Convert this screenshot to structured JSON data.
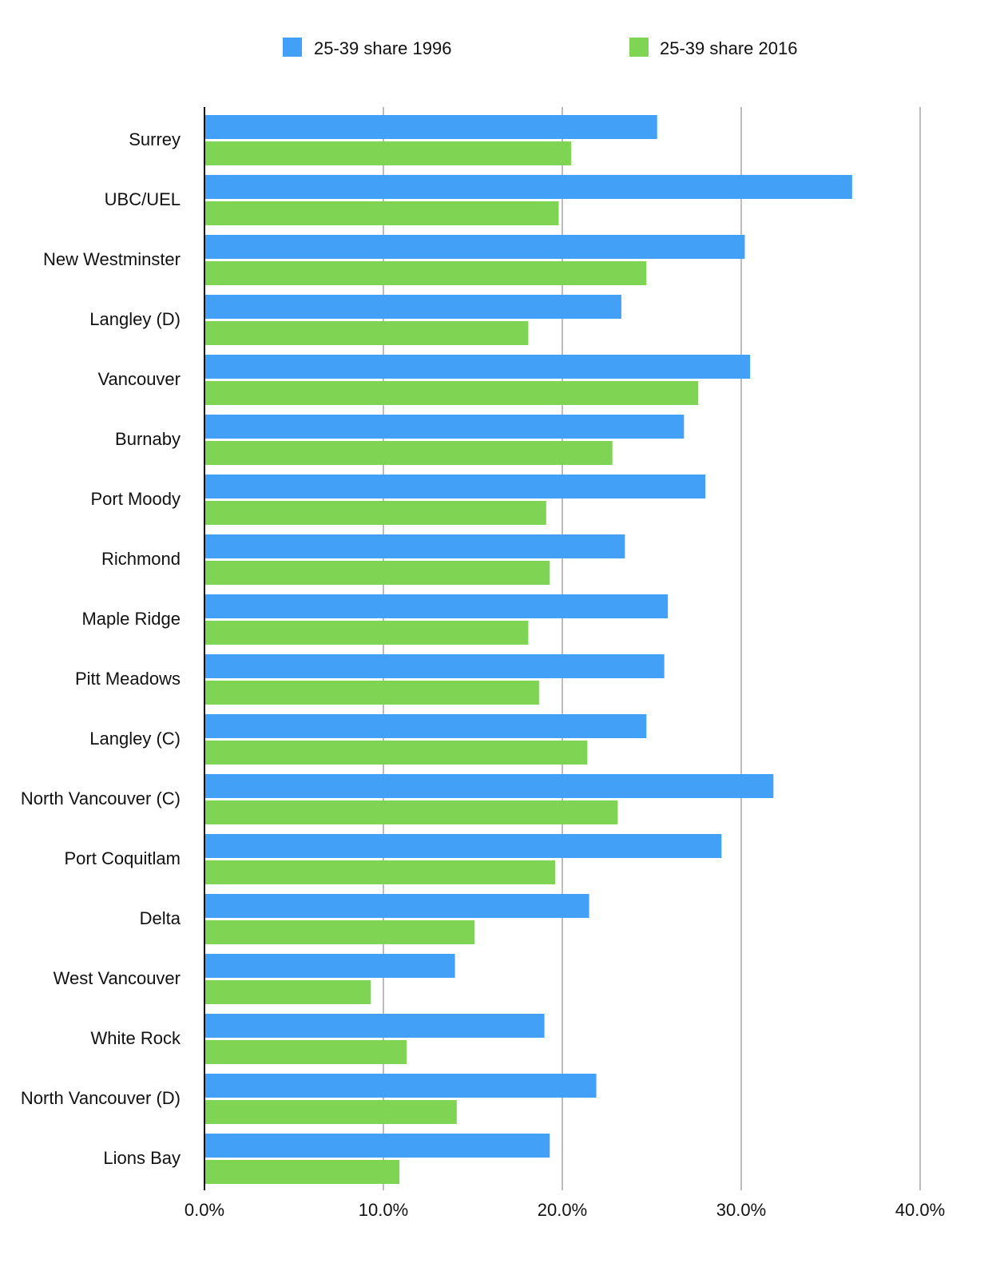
{
  "chart_data": {
    "type": "bar",
    "orientation": "horizontal",
    "categories": [
      "Surrey",
      "UBC/UEL",
      "New Westminster",
      "Langley (D)",
      "Vancouver",
      "Burnaby",
      "Port Moody",
      "Richmond",
      "Maple Ridge",
      "Pitt Meadows",
      "Langley (C)",
      "North Vancouver (C)",
      "Port Coquitlam",
      "Delta",
      "West Vancouver",
      "White Rock",
      "North Vancouver (D)",
      "Lions Bay"
    ],
    "series": [
      {
        "name": "25-39 share 1996",
        "color": "#42a1f6",
        "values": [
          25.3,
          36.2,
          30.2,
          23.3,
          30.5,
          26.8,
          28.0,
          23.5,
          25.9,
          25.7,
          24.7,
          31.8,
          28.9,
          21.5,
          14.0,
          19.0,
          21.9,
          19.3
        ]
      },
      {
        "name": "25-39 share 2016",
        "color": "#7fd454",
        "values": [
          20.5,
          19.8,
          24.7,
          18.1,
          27.6,
          22.8,
          19.1,
          19.3,
          18.1,
          18.7,
          21.4,
          23.1,
          19.6,
          15.1,
          9.3,
          11.3,
          14.1,
          10.9
        ]
      }
    ],
    "xlim": [
      0,
      40
    ],
    "xticks": [
      0,
      10,
      20,
      30,
      40
    ],
    "xtick_labels": [
      "0.0%",
      "10.0%",
      "20.0%",
      "30.0%",
      "40.0%"
    ],
    "grid": true,
    "legend_position": "top-center",
    "title": "",
    "xlabel": "",
    "ylabel": ""
  }
}
